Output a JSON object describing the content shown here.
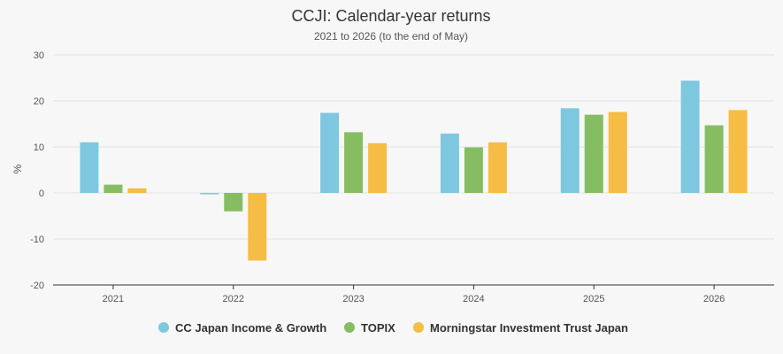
{
  "chart_data": {
    "type": "bar",
    "title": "CCJI: Calendar-year returns",
    "subtitle": "2021 to 2026 (to the end of May)",
    "xlabel": "",
    "ylabel": "%",
    "ylim": [
      -20,
      30
    ],
    "yticks": [
      30,
      20,
      10,
      0,
      -10,
      -20
    ],
    "grid": true,
    "legend_position": "bottom",
    "categories": [
      "2021",
      "2022",
      "2023",
      "2024",
      "2025",
      "2026"
    ],
    "series": [
      {
        "name": "CC Japan Income & Growth",
        "color": "#7ec8df",
        "values": [
          11.0,
          -0.3,
          17.4,
          12.9,
          18.4,
          24.4
        ]
      },
      {
        "name": "TOPIX",
        "color": "#87bd62",
        "values": [
          1.8,
          -4.0,
          13.2,
          9.9,
          17.0,
          14.7
        ]
      },
      {
        "name": "Morningstar Investment Trust Japan",
        "color": "#f5bd45",
        "values": [
          1.0,
          -14.7,
          10.8,
          11.0,
          17.6,
          18.0
        ]
      }
    ]
  }
}
